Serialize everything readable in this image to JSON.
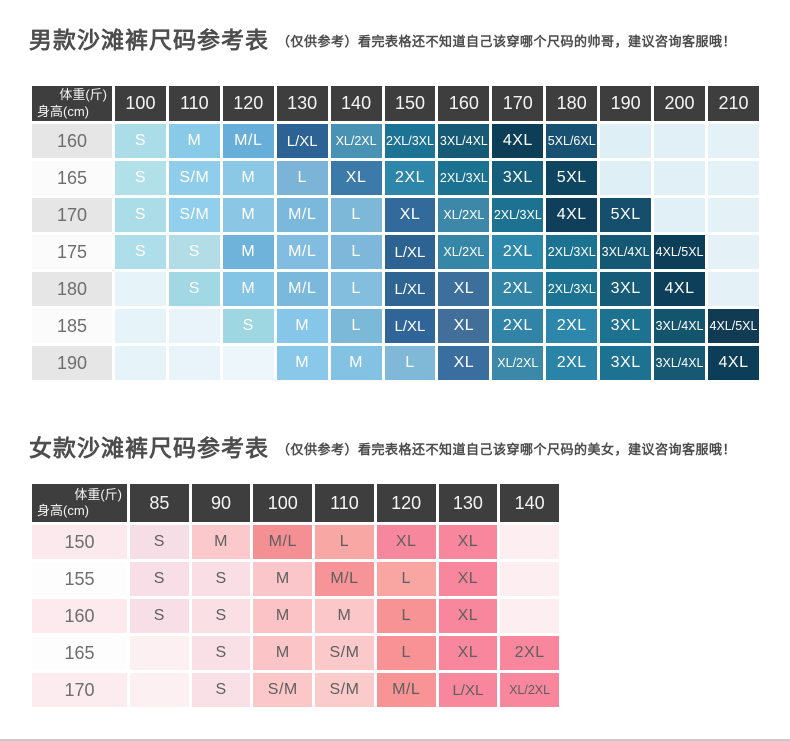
{
  "colors": {
    "header_bg": "#3e3e3e",
    "title_text": "#4d4d4d",
    "row_label_text": "#6e6e6e",
    "mens_cell_text": "#ffffff",
    "womens_cell_text": "#5f5f5f",
    "page_bg": "#ffffff",
    "bottom_border": "#cbcbcb"
  },
  "mens": {
    "title": "男款沙滩裤尺码参考表",
    "subtitle": "（仅供参考）看完表格还不知道自己该穿哪个尺码的帅哥，建议咨询客服哦！",
    "corner_top": "体重(斤)",
    "corner_bottom": "身高(cm)",
    "columns": [
      "100",
      "110",
      "120",
      "130",
      "140",
      "150",
      "160",
      "170",
      "180",
      "190",
      "200",
      "210"
    ],
    "rows": [
      {
        "label": "160",
        "label_bg": "#e6e6e6",
        "cells": [
          {
            "t": "S",
            "c": "#abdde9"
          },
          {
            "t": "M",
            "c": "#8acae9"
          },
          {
            "t": "M/L",
            "c": "#67aed8"
          },
          {
            "t": "L/XL",
            "c": "#2d6394"
          },
          {
            "t": "XL/2XL",
            "c": "#4a92b3"
          },
          {
            "t": "2XL/3XL",
            "c": "#1c7394"
          },
          {
            "t": "3XL/4XL",
            "c": "#165a75"
          },
          {
            "t": "4XL",
            "c": "#0d3e58"
          },
          {
            "t": "5XL/6XL",
            "c": "#185171"
          },
          {
            "t": "",
            "c": "#deeff6"
          },
          {
            "t": "",
            "c": "#e1f0f7"
          },
          {
            "t": "",
            "c": "#e4f2f8"
          }
        ]
      },
      {
        "label": "165",
        "label_bg": "#fbfbfb",
        "cells": [
          {
            "t": "S",
            "c": "#b1e0e8"
          },
          {
            "t": "S/M",
            "c": "#90cdea"
          },
          {
            "t": "M",
            "c": "#8bc8e6"
          },
          {
            "t": "L",
            "c": "#7cb4d8"
          },
          {
            "t": "XL",
            "c": "#3b7aa9"
          },
          {
            "t": "2XL",
            "c": "#2e86ab"
          },
          {
            "t": "2XL/3XL",
            "c": "#1b7291"
          },
          {
            "t": "3XL",
            "c": "#165f7c"
          },
          {
            "t": "5XL",
            "c": "#0e4560"
          },
          {
            "t": "",
            "c": "#deeff6"
          },
          {
            "t": "",
            "c": "#e1f0f7"
          },
          {
            "t": "",
            "c": "#e4f2f8"
          }
        ]
      },
      {
        "label": "170",
        "label_bg": "#e6e6e6",
        "cells": [
          {
            "t": "S",
            "c": "#abdde8"
          },
          {
            "t": "S/M",
            "c": "#92cfec"
          },
          {
            "t": "M",
            "c": "#8bc7e5"
          },
          {
            "t": "M/L",
            "c": "#7ab8dc"
          },
          {
            "t": "L",
            "c": "#7eb8d8"
          },
          {
            "t": "XL",
            "c": "#326a9b"
          },
          {
            "t": "XL/2XL",
            "c": "#3d88a9"
          },
          {
            "t": "2XL/3XL",
            "c": "#1c7290"
          },
          {
            "t": "4XL",
            "c": "#103f5c"
          },
          {
            "t": "5XL",
            "c": "#154f6d"
          },
          {
            "t": "",
            "c": "#e1f0f7"
          },
          {
            "t": "",
            "c": "#e4f2f8"
          }
        ]
      },
      {
        "label": "175",
        "label_bg": "#fbfbfb",
        "cells": [
          {
            "t": "S",
            "c": "#addee9"
          },
          {
            "t": "S",
            "c": "#b2dce6"
          },
          {
            "t": "M",
            "c": "#6fb3db"
          },
          {
            "t": "M/L",
            "c": "#82bce0"
          },
          {
            "t": "L",
            "c": "#7db7d9"
          },
          {
            "t": "L/XL",
            "c": "#2d6392"
          },
          {
            "t": "XL/2XL",
            "c": "#3686a8"
          },
          {
            "t": "2XL",
            "c": "#2d89ac"
          },
          {
            "t": "2XL/3XL",
            "c": "#1b7391"
          },
          {
            "t": "3XL/4XL",
            "c": "#145873"
          },
          {
            "t": "4XL/5XL",
            "c": "#0c3e57"
          },
          {
            "t": "",
            "c": "#e4f2f8"
          }
        ]
      },
      {
        "label": "180",
        "label_bg": "#e6e6e6",
        "cells": [
          {
            "t": "",
            "c": "#e6f3f9"
          },
          {
            "t": "S",
            "c": "#a1d8e4"
          },
          {
            "t": "M",
            "c": "#84c4e4"
          },
          {
            "t": "M/L",
            "c": "#7ab8dc"
          },
          {
            "t": "L",
            "c": "#84bede"
          },
          {
            "t": "L/XL",
            "c": "#2f6593"
          },
          {
            "t": "XL",
            "c": "#3d6f9c"
          },
          {
            "t": "2XL",
            "c": "#3385a8"
          },
          {
            "t": "2XL/3XL",
            "c": "#1d7392"
          },
          {
            "t": "3XL",
            "c": "#165b77"
          },
          {
            "t": "4XL",
            "c": "#0d3f5b"
          },
          {
            "t": "",
            "c": "#e4f2f8"
          }
        ]
      },
      {
        "label": "185",
        "label_bg": "#fbfbfb",
        "cells": [
          {
            "t": "",
            "c": "#e6f3f9"
          },
          {
            "t": "",
            "c": "#e9f4fa"
          },
          {
            "t": "S",
            "c": "#9ed6e2"
          },
          {
            "t": "M",
            "c": "#86c6e8"
          },
          {
            "t": "L",
            "c": "#7cb8d8"
          },
          {
            "t": "L/XL",
            "c": "#30659a"
          },
          {
            "t": "XL",
            "c": "#416f9a"
          },
          {
            "t": "2XL",
            "c": "#3183a8"
          },
          {
            "t": "2XL",
            "c": "#2d87ac"
          },
          {
            "t": "3XL",
            "c": "#1d7290"
          },
          {
            "t": "3XL/4XL",
            "c": "#13556d"
          },
          {
            "t": "4XL/5XL",
            "c": "#113b53"
          }
        ]
      },
      {
        "label": "190",
        "label_bg": "#e6e6e6",
        "cells": [
          {
            "t": "",
            "c": "#e6f3f9"
          },
          {
            "t": "",
            "c": "#e9f4fa"
          },
          {
            "t": "",
            "c": "#ecf6fb"
          },
          {
            "t": "M",
            "c": "#8ac8ea"
          },
          {
            "t": "M",
            "c": "#84c2e4"
          },
          {
            "t": "L",
            "c": "#80b8d8"
          },
          {
            "t": "XL",
            "c": "#396e9e"
          },
          {
            "t": "XL/2XL",
            "c": "#3b88a8"
          },
          {
            "t": "2XL",
            "c": "#2a84a8"
          },
          {
            "t": "3XL",
            "c": "#1c7290"
          },
          {
            "t": "3XL/4XL",
            "c": "#175973"
          },
          {
            "t": "4XL",
            "c": "#0d3e59"
          }
        ]
      }
    ]
  },
  "womens": {
    "title": "女款沙滩裤尺码参考表",
    "subtitle": "（仅供参考）看完表格还不知道自己该穿哪个尺码的美女，建议咨询客服哦！",
    "corner_top": "体重(斤)",
    "corner_bottom": "身高(cm)",
    "columns": [
      "85",
      "90",
      "100",
      "110",
      "120",
      "130",
      "140"
    ],
    "rows": [
      {
        "label": "150",
        "label_bg": "#fce9ee",
        "cells": [
          {
            "t": "S",
            "c": "#f6dee6"
          },
          {
            "t": "M",
            "c": "#fbc9cc"
          },
          {
            "t": "M/L",
            "c": "#f49093"
          },
          {
            "t": "L",
            "c": "#f9a7a4"
          },
          {
            "t": "XL",
            "c": "#f7879d"
          },
          {
            "t": "XL",
            "c": "#f8869d"
          },
          {
            "t": "",
            "c": "#fdeef1"
          }
        ]
      },
      {
        "label": "155",
        "label_bg": "#fdfdfd",
        "cells": [
          {
            "t": "S",
            "c": "#f8dfe7"
          },
          {
            "t": "S",
            "c": "#fadee5"
          },
          {
            "t": "M",
            "c": "#fbc6c9"
          },
          {
            "t": "M/L",
            "c": "#f79497"
          },
          {
            "t": "L",
            "c": "#f9a5a2"
          },
          {
            "t": "XL",
            "c": "#f8879e"
          },
          {
            "t": "",
            "c": "#fdeef1"
          }
        ]
      },
      {
        "label": "160",
        "label_bg": "#fceaee",
        "cells": [
          {
            "t": "S",
            "c": "#f8dfe7"
          },
          {
            "t": "S",
            "c": "#fadfe5"
          },
          {
            "t": "M",
            "c": "#fbc3c6"
          },
          {
            "t": "M",
            "c": "#fbc7c8"
          },
          {
            "t": "L",
            "c": "#f89395"
          },
          {
            "t": "XL",
            "c": "#f8869d"
          },
          {
            "t": "",
            "c": "#fdeef1"
          }
        ]
      },
      {
        "label": "165",
        "label_bg": "#fdfdfd",
        "cells": [
          {
            "t": "",
            "c": "#fdf0f3"
          },
          {
            "t": "S",
            "c": "#f9dfe6"
          },
          {
            "t": "M",
            "c": "#fbc5c8"
          },
          {
            "t": "S/M",
            "c": "#fbc9ca"
          },
          {
            "t": "L",
            "c": "#f89295"
          },
          {
            "t": "XL",
            "c": "#f8869d"
          },
          {
            "t": "2XL",
            "c": "#f8879e"
          }
        ]
      },
      {
        "label": "170",
        "label_bg": "#fcebef",
        "cells": [
          {
            "t": "",
            "c": "#fdf0f3"
          },
          {
            "t": "S",
            "c": "#f9e0e7"
          },
          {
            "t": "S/M",
            "c": "#fbc7c9"
          },
          {
            "t": "S/M",
            "c": "#fbcbcc"
          },
          {
            "t": "M/L",
            "c": "#f89396"
          },
          {
            "t": "L/XL",
            "c": "#f8869d"
          },
          {
            "t": "XL/2XL",
            "c": "#f8879e"
          }
        ]
      }
    ]
  }
}
